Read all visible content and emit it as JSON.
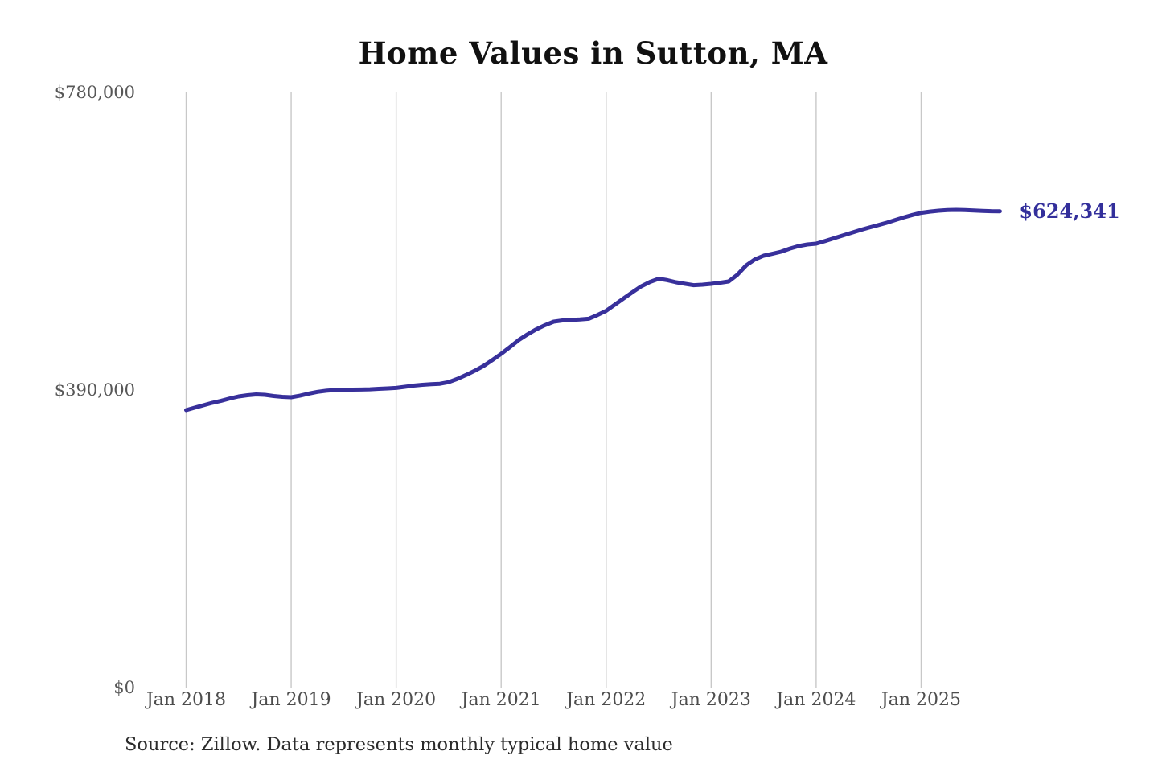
{
  "title": "Home Values in Sutton, MA",
  "source_note": "Source: Zillow. Data represents monthly typical home value",
  "end_value_label": "$624,341",
  "colors": {
    "line": "#38309b",
    "grid": "#c8c8c8",
    "y_tick_text": "#575757",
    "x_tick_text": "#4d4d4d",
    "title_text": "#111111",
    "end_label_text": "#332f9b",
    "source_text": "#2b2b2b",
    "background": "#ffffff"
  },
  "y_axis": {
    "min": 0,
    "max": 780000,
    "ticks": [
      {
        "label": "$780,000",
        "value": 780000
      },
      {
        "label": "$390,000",
        "value": 390000
      },
      {
        "label": "$0",
        "value": 0
      }
    ]
  },
  "x_axis": {
    "ticks": [
      "Jan 2018",
      "Jan 2019",
      "Jan 2020",
      "Jan 2021",
      "Jan 2022",
      "Jan 2023",
      "Jan 2024",
      "Jan 2025"
    ]
  },
  "chart_data": {
    "type": "line",
    "title": "Home Values in Sutton, MA",
    "xlabel": "",
    "ylabel": "",
    "ylim": [
      0,
      780000
    ],
    "grid": "vertical",
    "legend": "none",
    "line_color": "#38309b",
    "x_tick_labels": [
      "Jan 2018",
      "Jan 2019",
      "Jan 2020",
      "Jan 2021",
      "Jan 2022",
      "Jan 2023",
      "Jan 2024",
      "Jan 2025"
    ],
    "end_annotation": {
      "text": "$624,341",
      "value": 624341
    },
    "x": [
      "2018-01",
      "2018-02",
      "2018-03",
      "2018-04",
      "2018-05",
      "2018-06",
      "2018-07",
      "2018-08",
      "2018-09",
      "2018-10",
      "2018-11",
      "2018-12",
      "2019-01",
      "2019-02",
      "2019-03",
      "2019-04",
      "2019-05",
      "2019-06",
      "2019-07",
      "2019-08",
      "2019-09",
      "2019-10",
      "2019-11",
      "2019-12",
      "2020-01",
      "2020-02",
      "2020-03",
      "2020-04",
      "2020-05",
      "2020-06",
      "2020-07",
      "2020-08",
      "2020-09",
      "2020-10",
      "2020-11",
      "2020-12",
      "2021-01",
      "2021-02",
      "2021-03",
      "2021-04",
      "2021-05",
      "2021-06",
      "2021-07",
      "2021-08",
      "2021-09",
      "2021-10",
      "2021-11",
      "2021-12",
      "2022-01",
      "2022-02",
      "2022-03",
      "2022-04",
      "2022-05",
      "2022-06",
      "2022-07",
      "2022-08",
      "2022-09",
      "2022-10",
      "2022-11",
      "2022-12",
      "2023-01",
      "2023-02",
      "2023-03",
      "2023-04",
      "2023-05",
      "2023-06",
      "2023-07",
      "2023-08",
      "2023-09",
      "2023-10",
      "2023-11",
      "2023-12",
      "2024-01",
      "2024-02",
      "2024-03",
      "2024-04",
      "2024-05",
      "2024-06",
      "2024-07",
      "2024-08",
      "2024-09",
      "2024-10",
      "2024-11",
      "2024-12",
      "2025-01",
      "2025-02",
      "2025-03",
      "2025-04",
      "2025-05",
      "2025-06",
      "2025-07",
      "2025-08",
      "2025-09",
      "2025-10"
    ],
    "values": [
      363600,
      366900,
      370100,
      373200,
      375900,
      378900,
      381600,
      383200,
      384200,
      383700,
      382100,
      381000,
      380500,
      382500,
      385300,
      387600,
      389000,
      390000,
      390500,
      390500,
      390600,
      391000,
      391600,
      392100,
      392700,
      394200,
      395800,
      396900,
      397600,
      398200,
      400300,
      404600,
      409800,
      415400,
      421600,
      429300,
      437400,
      446300,
      455500,
      462800,
      469500,
      475000,
      479600,
      481200,
      481800,
      482400,
      483400,
      488200,
      493800,
      501900,
      510100,
      518200,
      525900,
      531700,
      535900,
      534000,
      531200,
      529200,
      527400,
      528100,
      529100,
      530600,
      532300,
      541200,
      553400,
      561200,
      566000,
      568600,
      571300,
      575400,
      578700,
      580800,
      581800,
      585200,
      588800,
      592400,
      596000,
      599500,
      602800,
      605900,
      609000,
      612600,
      616200,
      619500,
      622300,
      623900,
      625100,
      625800,
      626100,
      625800,
      625300,
      624800,
      624400,
      624341
    ]
  }
}
